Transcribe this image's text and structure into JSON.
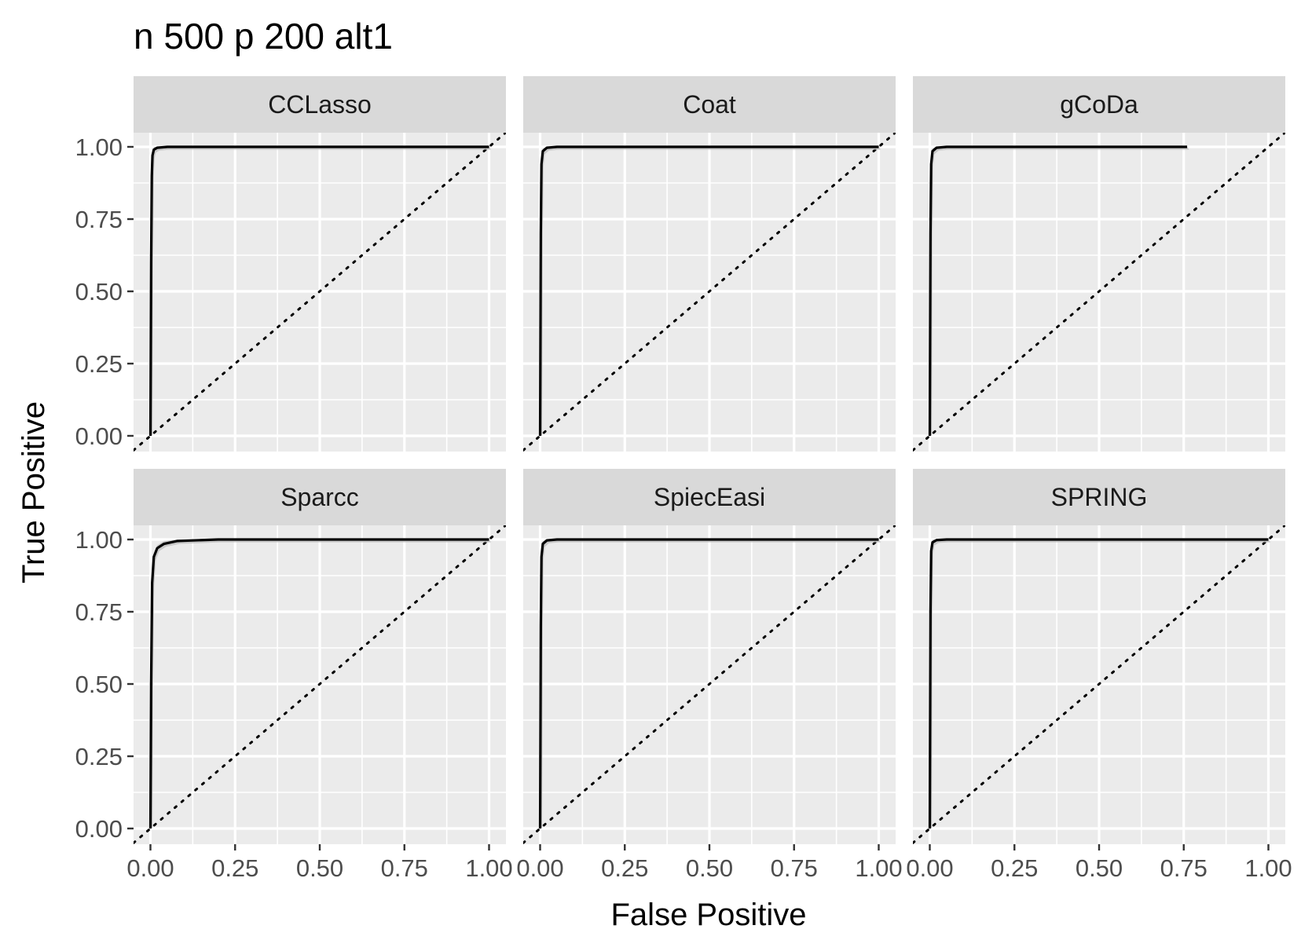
{
  "chart_data": {
    "type": "line",
    "title": "n 500 p 200 alt1",
    "xlabel": "False Positive",
    "ylabel": "True Positive",
    "xlim": [
      0,
      1
    ],
    "ylim": [
      0,
      1
    ],
    "x_ticks": [
      "0.00",
      "0.25",
      "0.50",
      "0.75",
      "1.00"
    ],
    "y_ticks": [
      "0.00",
      "0.25",
      "0.50",
      "0.75",
      "1.00"
    ],
    "grid": true,
    "reference_line": {
      "style": "dotted",
      "x": [
        0,
        1
      ],
      "y": [
        0,
        1
      ]
    },
    "facets": [
      {
        "label": "CCLasso",
        "x": [
          0.0,
          0.002,
          0.004,
          0.006,
          0.01,
          0.02,
          0.05,
          0.2,
          1.0
        ],
        "y": [
          0.0,
          0.6,
          0.9,
          0.97,
          0.99,
          0.997,
          1.0,
          1.0,
          1.0
        ]
      },
      {
        "label": "Coat",
        "x": [
          0.0,
          0.002,
          0.004,
          0.008,
          0.02,
          0.05,
          1.0
        ],
        "y": [
          0.0,
          0.7,
          0.94,
          0.985,
          0.997,
          1.0,
          1.0
        ]
      },
      {
        "label": "gCoDa",
        "x": [
          0.0,
          0.002,
          0.004,
          0.008,
          0.02,
          0.05,
          0.76
        ],
        "y": [
          0.0,
          0.7,
          0.94,
          0.985,
          0.997,
          1.0,
          1.0
        ]
      },
      {
        "label": "Sparcc",
        "x": [
          0.0,
          0.002,
          0.005,
          0.01,
          0.02,
          0.04,
          0.08,
          0.2,
          1.0
        ],
        "y": [
          0.0,
          0.5,
          0.85,
          0.94,
          0.97,
          0.985,
          0.995,
          1.0,
          1.0
        ]
      },
      {
        "label": "SpiecEasi",
        "x": [
          0.0,
          0.002,
          0.004,
          0.008,
          0.02,
          0.05,
          1.0
        ],
        "y": [
          0.0,
          0.7,
          0.94,
          0.985,
          0.997,
          1.0,
          1.0
        ]
      },
      {
        "label": "SPRING",
        "x": [
          0.0,
          0.002,
          0.004,
          0.008,
          0.02,
          0.05,
          1.0
        ],
        "y": [
          0.0,
          0.75,
          0.96,
          0.99,
          0.998,
          1.0,
          1.0
        ]
      }
    ]
  }
}
